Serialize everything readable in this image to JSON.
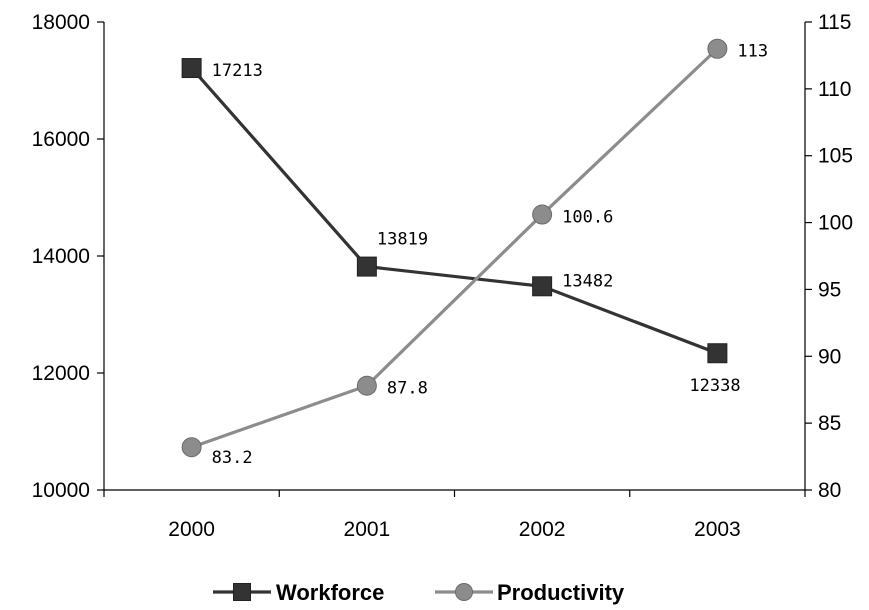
{
  "chart_data": {
    "type": "line",
    "categories": [
      "2000",
      "2001",
      "2002",
      "2003"
    ],
    "series": [
      {
        "name": "Workforce",
        "axis": "left",
        "values": [
          17213,
          13819,
          13482,
          12338
        ],
        "labels": [
          "17213",
          "13819",
          "13482",
          "12338"
        ],
        "color": "#333333",
        "marker": "square"
      },
      {
        "name": "Productivity",
        "axis": "right",
        "values": [
          83.2,
          87.8,
          100.6,
          113
        ],
        "labels": [
          "83.2",
          "87.8",
          "100.6",
          "113"
        ],
        "color": "#8c8c8c",
        "marker": "circle"
      }
    ],
    "y_left": {
      "range": [
        10000,
        18000
      ],
      "ticks": [
        10000,
        12000,
        14000,
        16000,
        18000
      ],
      "tick_labels": [
        "10000",
        "12000",
        "14000",
        "16000",
        "18000"
      ]
    },
    "y_right": {
      "range": [
        80,
        115
      ],
      "ticks": [
        80,
        85,
        90,
        95,
        100,
        105,
        110,
        115
      ],
      "tick_labels": [
        "80",
        "85",
        "90",
        "95",
        "100",
        "105",
        "110",
        "115"
      ]
    },
    "grid": false,
    "legend_position": "bottom"
  }
}
